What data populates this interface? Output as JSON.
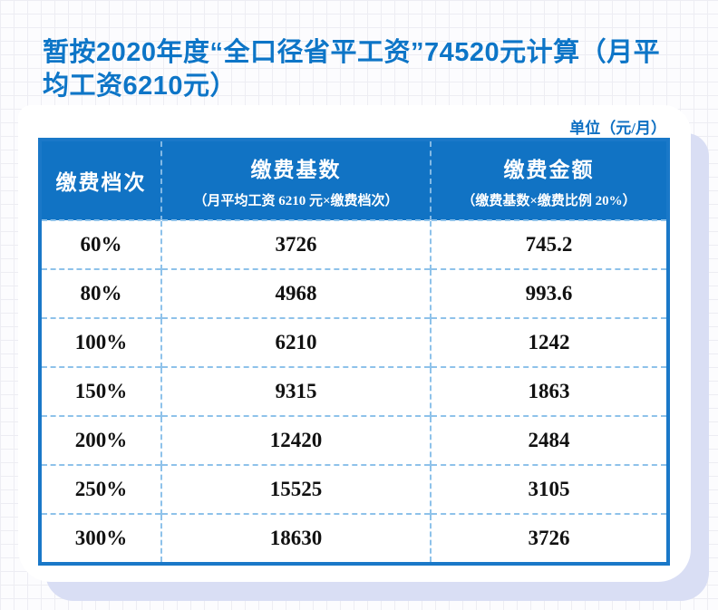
{
  "page": {
    "title_full": "暂按2020年度“全口径省平工资”74520元计算（月平均工资6210元）",
    "title_line1": "暂按2020年度“全口径省平工资”74520元计算（月平",
    "title_line2": "均工资6210元）",
    "unit_label": "单位（元/月）"
  },
  "table": {
    "columns": [
      {
        "label": "缴费档次",
        "sublabel": ""
      },
      {
        "label": "缴费基数",
        "sublabel": "（月平均工资 6210 元×缴费档次）"
      },
      {
        "label": "缴费金额",
        "sublabel": "（缴费基数×缴费比例 20%）"
      }
    ],
    "rows": [
      [
        "60%",
        "3726",
        "745.2"
      ],
      [
        "80%",
        "4968",
        "993.6"
      ],
      [
        "100%",
        "6210",
        "1242"
      ],
      [
        "150%",
        "9315",
        "1863"
      ],
      [
        "200%",
        "12420",
        "2484"
      ],
      [
        "250%",
        "15525",
        "3105"
      ],
      [
        "300%",
        "18630",
        "3726"
      ]
    ]
  },
  "colors": {
    "title_blue": "#0d75c7",
    "header_bg": "#1173c4",
    "table_border": "#1a78c8",
    "cell_divider": "#8ec2ea",
    "body_text": "#111111",
    "card_shadow": "#d9def4",
    "grid_line": "#ededf3"
  }
}
